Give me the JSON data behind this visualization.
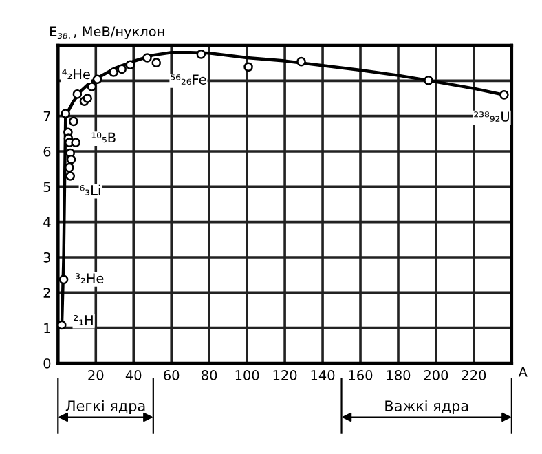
{
  "chart_data": {
    "type": "scatter",
    "ylabel": "E$_{зв.}$, МеВ/нуклон",
    "xlabel": "A",
    "xlim": [
      0,
      240
    ],
    "ylim": [
      0,
      9
    ],
    "xticks": [
      {
        "value": 0,
        "label": null
      },
      20,
      40,
      60,
      80,
      100,
      120,
      140,
      160,
      180,
      200,
      220,
      {
        "value": 240,
        "label": null
      }
    ],
    "yticks": [
      0,
      1,
      2,
      3,
      4,
      5,
      6,
      7,
      {
        "value": 8,
        "label": null
      },
      {
        "value": 9,
        "label": null
      }
    ],
    "grid": true,
    "marker": "circle",
    "series": [
      {
        "type": "line",
        "marker": "none",
        "color": "#000000",
        "line_style": "solid",
        "x": [
          2,
          2.5,
          3,
          3.5,
          4,
          6,
          8,
          12,
          16,
          20,
          30,
          40,
          50,
          60,
          70,
          80,
          100,
          120,
          140,
          160,
          180,
          200,
          220,
          236
        ],
        "values": [
          1.0,
          2.0,
          3.0,
          5.0,
          7.0,
          7.2,
          7.4,
          7.7,
          7.9,
          8.05,
          8.35,
          8.55,
          8.72,
          8.8,
          8.8,
          8.78,
          8.65,
          8.56,
          8.43,
          8.3,
          8.15,
          7.97,
          7.78,
          7.6
        ]
      },
      {
        "color": "#000000",
        "x": [
          2,
          3,
          4,
          5.3,
          5.5,
          6,
          6.5,
          7,
          6,
          6.5,
          8.2,
          9.4,
          10.2,
          13.9,
          15.6,
          17.9,
          20.8,
          29.4,
          33.8,
          38.2,
          47.2,
          52,
          75.7,
          100.7,
          128.7,
          196,
          236
        ],
        "values": [
          1.08,
          2.37,
          7.07,
          6.54,
          6.37,
          6.25,
          5.95,
          5.77,
          5.54,
          5.3,
          6.85,
          6.25,
          7.62,
          7.42,
          7.5,
          7.83,
          8.04,
          8.24,
          8.33,
          8.45,
          8.65,
          8.51,
          8.75,
          8.39,
          8.54,
          8.01,
          7.6
        ]
      }
    ],
    "annotations": [
      {
        "text": "²₁H",
        "x": 2,
        "y": 1.08
      },
      {
        "text": "³₂He",
        "x": 3,
        "y": 2.37
      },
      {
        "text": "⁶₃Li",
        "x": 5.3,
        "y": 5.3
      },
      {
        "text": "¹⁰₅B",
        "x": 9.4,
        "y": 6.25
      },
      {
        "text": "⁴₂He",
        "x": 4,
        "y": 7.07
      },
      {
        "text": "⁵⁶₂₆Fe",
        "x": 47.2,
        "y": 8.65
      },
      {
        "text": "²³⁸₉₂U",
        "x": 236,
        "y": 7.6
      },
      "Легкі ядра",
      "Важкі ядра"
    ]
  }
}
